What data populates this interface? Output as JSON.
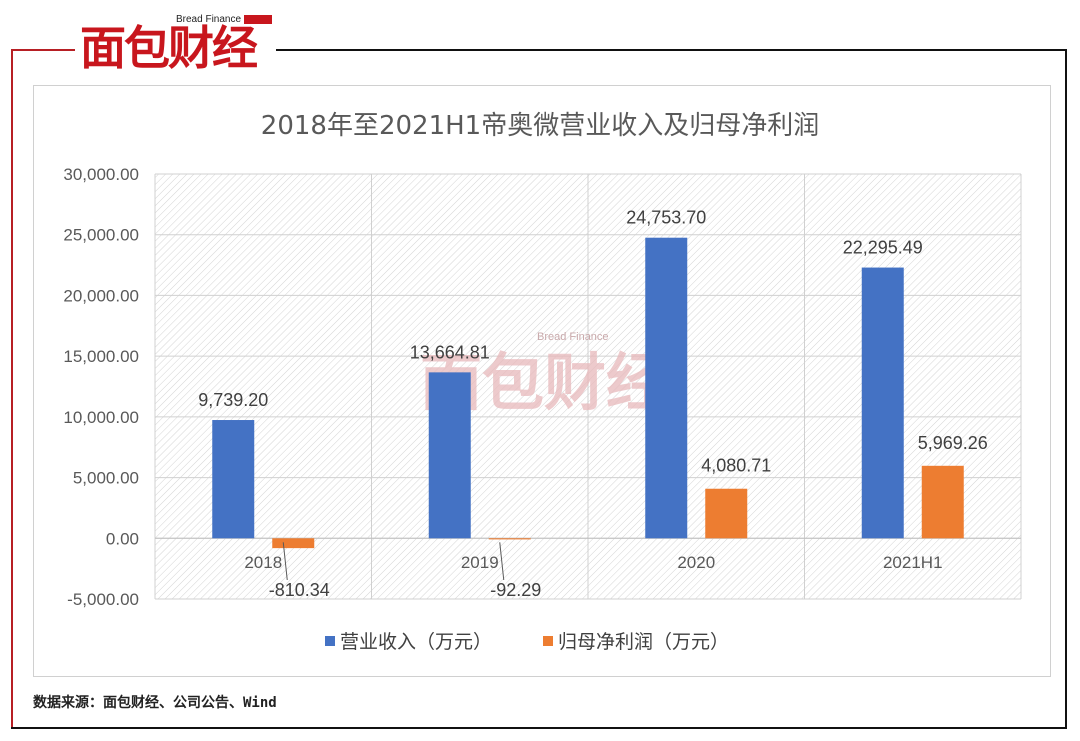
{
  "brand": {
    "name_cn": "面包财经",
    "name_en": "Bread Finance"
  },
  "source_note": "数据来源：面包财经、公司公告、Wind",
  "colors": {
    "revenue": "#4472C4",
    "net_profit": "#ED7D31",
    "brand_red": "#C8161D"
  },
  "chart_data": {
    "type": "bar",
    "title": "2018年至2021H1帝奥微营业收入及归母净利润",
    "categories": [
      "2018",
      "2019",
      "2020",
      "2021H1"
    ],
    "series": [
      {
        "name": "营业收入（万元）",
        "values": [
          9739.2,
          13664.81,
          24753.7,
          22295.49
        ],
        "labels": [
          "9,739.20",
          "13,664.81",
          "24,753.70",
          "22,295.49"
        ]
      },
      {
        "name": "归母净利润（万元）",
        "values": [
          -810.34,
          -92.29,
          4080.71,
          5969.26
        ],
        "labels": [
          "-810.34",
          "-92.29",
          "4,080.71",
          "5,969.26"
        ]
      }
    ],
    "ylim": [
      -5000,
      30000
    ],
    "yticks": [
      30000,
      25000,
      20000,
      15000,
      10000,
      5000,
      0,
      -5000
    ],
    "ytick_labels": [
      "30,000.00",
      "25,000.00",
      "20,000.00",
      "15,000.00",
      "10,000.00",
      "5,000.00",
      "0.00",
      "-5,000.00"
    ],
    "grid": true,
    "legend_position": "bottom"
  }
}
